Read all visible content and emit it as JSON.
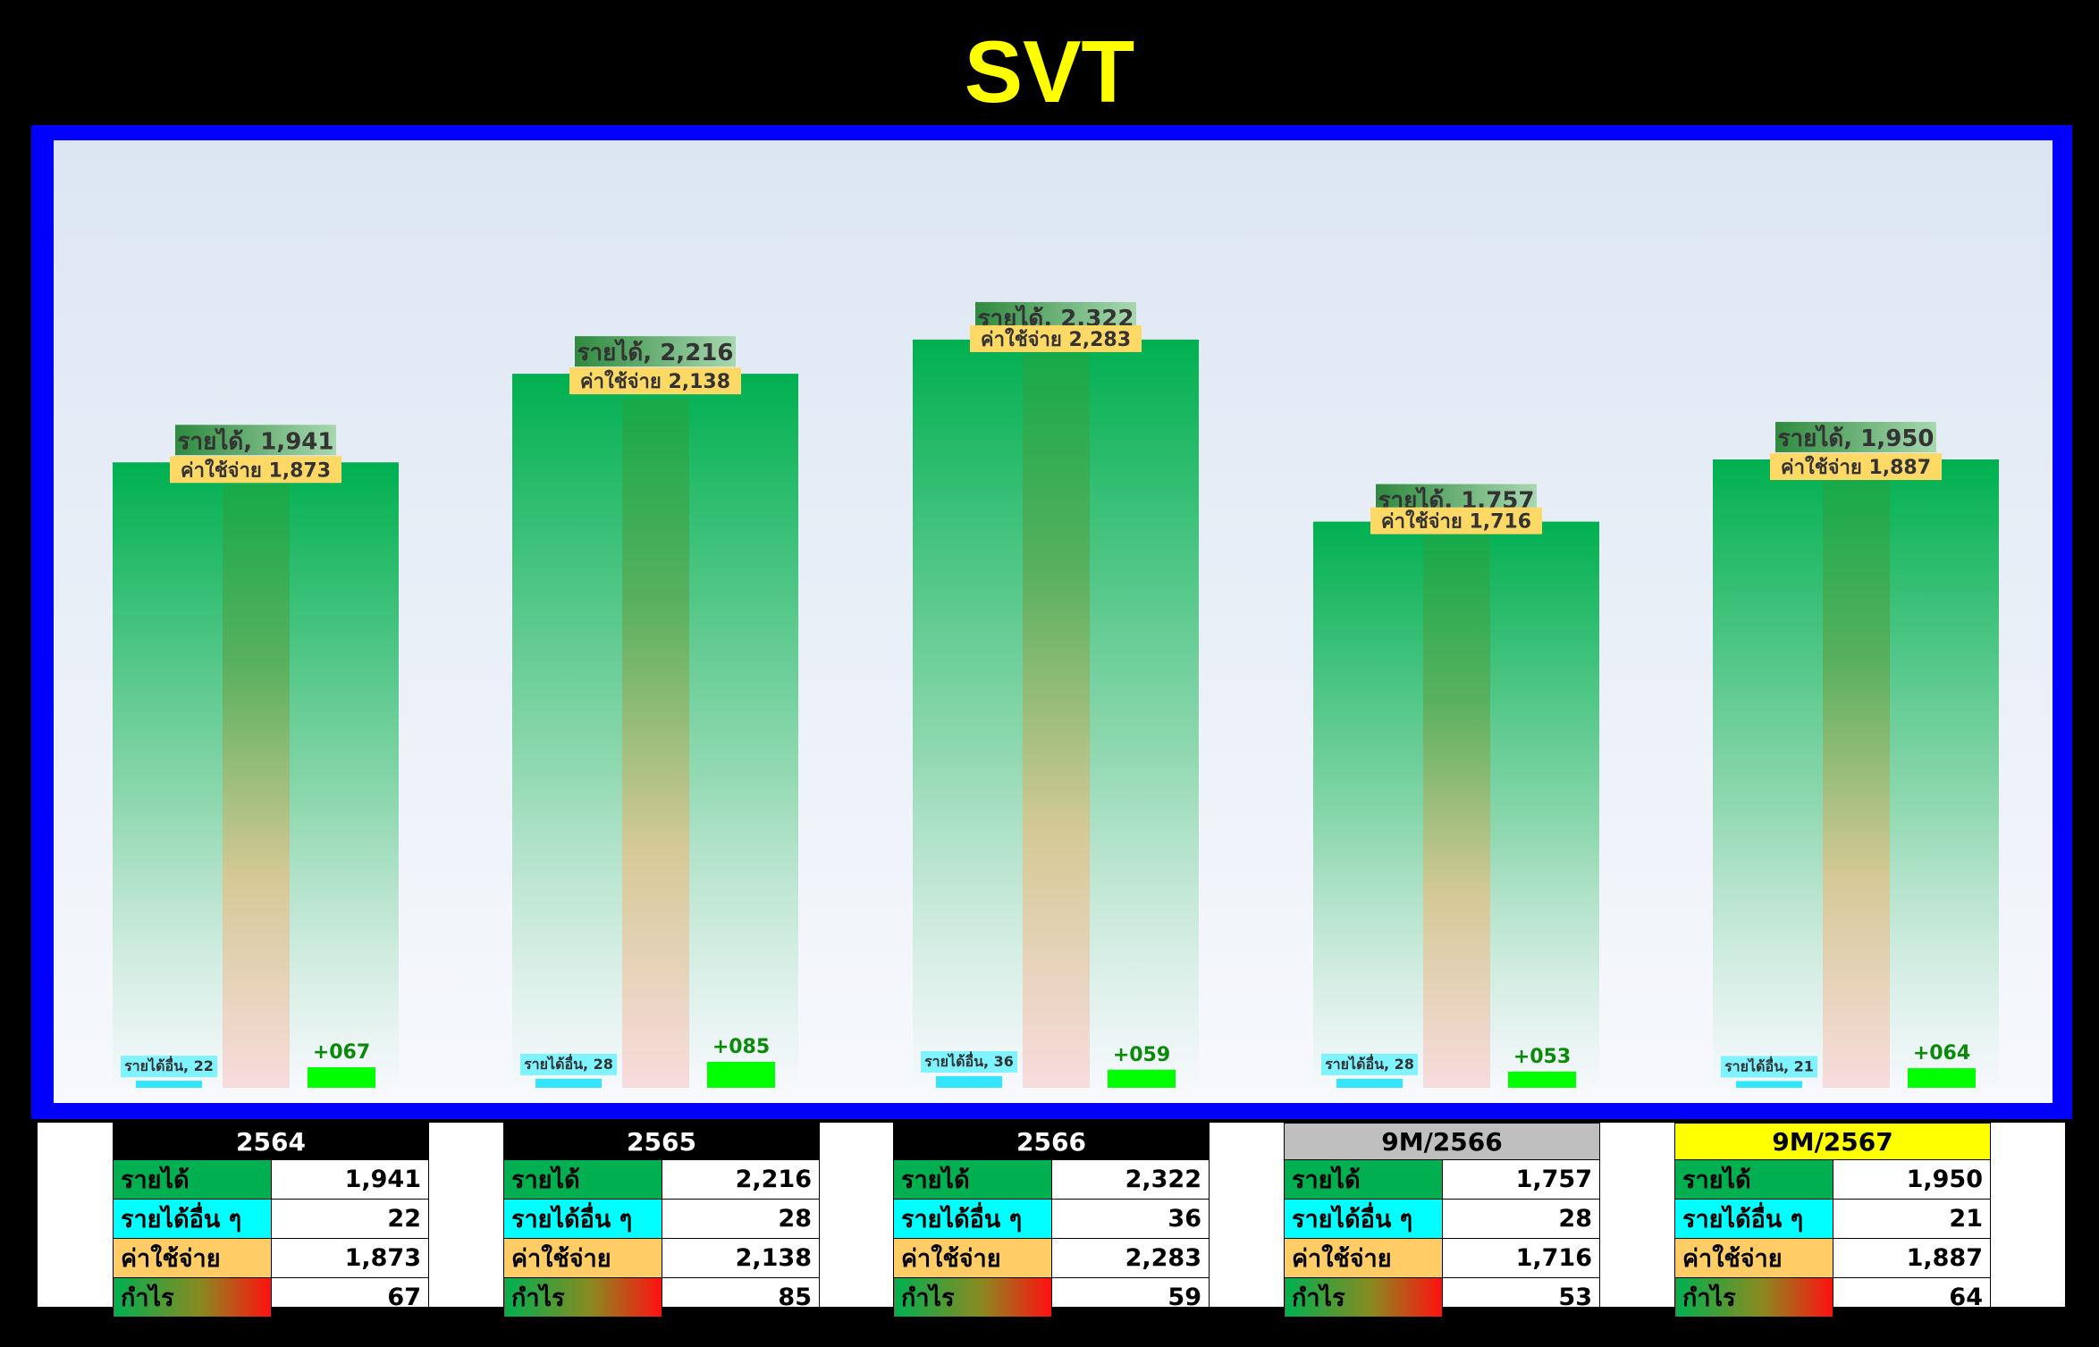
{
  "title": "SVT",
  "colors": {
    "background": "#000000",
    "frame": "#0000ff",
    "title": "#ffff00",
    "revenue_bar_top": "#00b050",
    "expense_bar_top": "#3aa84a",
    "expense_bar_bottom": "#ffd7d7",
    "other_income": "#33e6ff",
    "profit": "#00ff00",
    "profit_label": "#008000",
    "revenue_cell": "#00b050",
    "other_income_cell": "#00ffff",
    "expense_cell": "#ffcc66",
    "header_dark": "#000000",
    "header_gray": "#bfbfbf",
    "header_yellow": "#ffff00"
  },
  "chart_data": {
    "type": "bar",
    "categories": [
      "2564",
      "2565",
      "2566",
      "9M/2566",
      "9M/2567"
    ],
    "series": [
      {
        "name": "รายได้",
        "values": [
          1941,
          2216,
          2322,
          1757,
          1950
        ]
      },
      {
        "name": "รายได้อื่น ๆ",
        "values": [
          22,
          28,
          36,
          28,
          21
        ]
      },
      {
        "name": "ค่าใช้จ่าย",
        "values": [
          1873,
          2138,
          2283,
          1716,
          1887
        ]
      },
      {
        "name": "กำไร",
        "values": [
          67,
          85,
          59,
          53,
          64
        ]
      }
    ],
    "ylim": [
      0,
      2500
    ],
    "grid": false,
    "legend": "none",
    "data_labels": {
      "revenue": [
        "รายได้, 1,941",
        "รายได้, 2,216",
        "รายได้, 2,322",
        "รายได้, 1,757",
        "รายได้, 1,950"
      ],
      "expense": [
        "ค่าใช้จ่าย 1,873",
        "ค่าใช้จ่าย 2,138",
        "ค่าใช้จ่าย 2,283",
        "ค่าใช้จ่าย 1,716",
        "ค่าใช้จ่าย 1,887"
      ],
      "other_income": [
        "รายได้อื่น, 22",
        "รายได้อื่น, 28",
        "รายได้อื่น, 36",
        "รายได้อื่น, 28",
        "รายได้อื่น, 21"
      ],
      "profit": [
        "+067",
        "+085",
        "+059",
        "+053",
        "+064"
      ]
    }
  },
  "tables": [
    {
      "header": "2564",
      "header_style": "dark",
      "rows": [
        {
          "label": "รายได้",
          "value": "1,941"
        },
        {
          "label": "รายได้อื่น ๆ",
          "value": "22"
        },
        {
          "label": "ค่าใช้จ่าย",
          "value": "1,873"
        },
        {
          "label": "กำไร",
          "value": "67"
        }
      ]
    },
    {
      "header": "2565",
      "header_style": "dark",
      "rows": [
        {
          "label": "รายได้",
          "value": "2,216"
        },
        {
          "label": "รายได้อื่น ๆ",
          "value": "28"
        },
        {
          "label": "ค่าใช้จ่าย",
          "value": "2,138"
        },
        {
          "label": "กำไร",
          "value": "85"
        }
      ]
    },
    {
      "header": "2566",
      "header_style": "dark",
      "rows": [
        {
          "label": "รายได้",
          "value": "2,322"
        },
        {
          "label": "รายได้อื่น ๆ",
          "value": "36"
        },
        {
          "label": "ค่าใช้จ่าย",
          "value": "2,283"
        },
        {
          "label": "กำไร",
          "value": "59"
        }
      ]
    },
    {
      "header": "9M/2566",
      "header_style": "gray",
      "rows": [
        {
          "label": "รายได้",
          "value": "1,757"
        },
        {
          "label": "รายได้อื่น ๆ",
          "value": "28"
        },
        {
          "label": "ค่าใช้จ่าย",
          "value": "1,716"
        },
        {
          "label": "กำไร",
          "value": "53"
        }
      ]
    },
    {
      "header": "9M/2567",
      "header_style": "yellow",
      "rows": [
        {
          "label": "รายได้",
          "value": "1,950"
        },
        {
          "label": "รายได้อื่น ๆ",
          "value": "21"
        },
        {
          "label": "ค่าใช้จ่าย",
          "value": "1,887"
        },
        {
          "label": "กำไร",
          "value": "64"
        }
      ]
    }
  ]
}
